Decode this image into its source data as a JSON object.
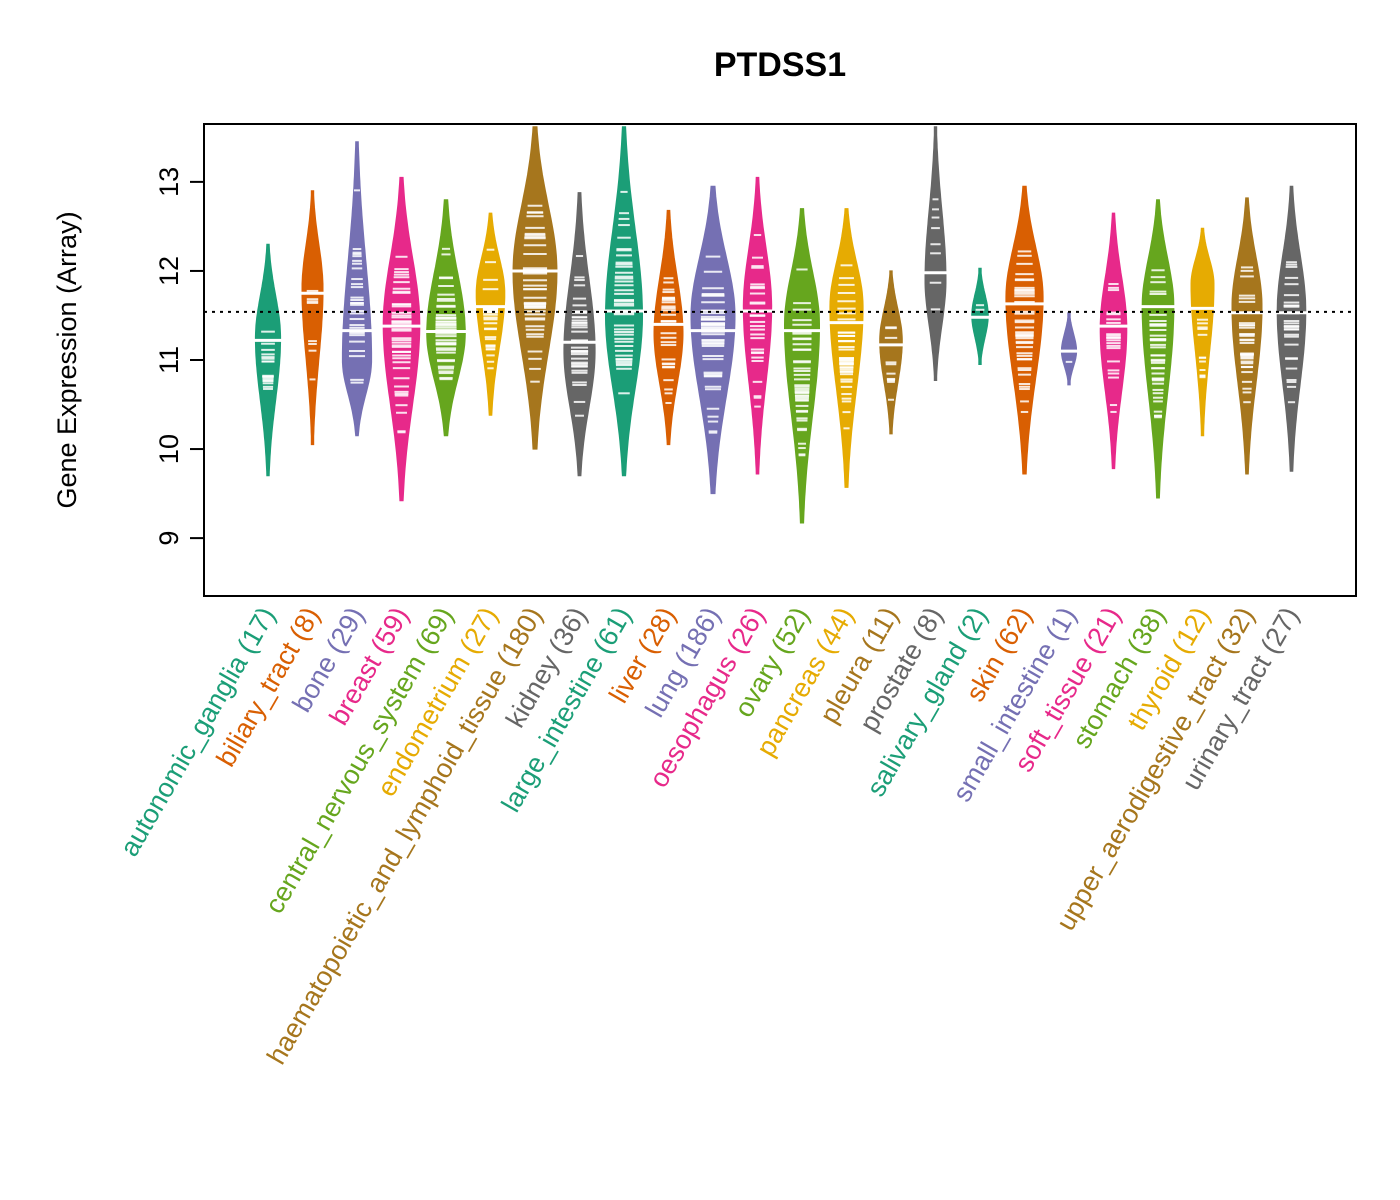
{
  "chart_data": {
    "type": "violin",
    "title": "PTDSS1",
    "xlabel": "",
    "ylabel": "Gene Expression (Array)",
    "ylim": [
      8.35,
      13.65
    ],
    "yticks": [
      9,
      10,
      11,
      12,
      13
    ],
    "reference_line": {
      "value": 11.54,
      "style": "dotted"
    },
    "grid": false,
    "legend": "none",
    "categories": [
      {
        "name": "autonomic_ganglia",
        "n": 17,
        "color": "#1B9E77",
        "min": 9.7,
        "max": 12.3,
        "median": 11.22,
        "peak": 11.25
      },
      {
        "name": "biliary_tract",
        "n": 8,
        "color": "#D95F02",
        "min": 10.05,
        "max": 12.9,
        "median": 11.75,
        "peak": 11.8
      },
      {
        "name": "bone",
        "n": 29,
        "color": "#7570B3",
        "min": 10.15,
        "max": 13.45,
        "median": 11.33,
        "peak": 11.0
      },
      {
        "name": "breast",
        "n": 59,
        "color": "#E7298A",
        "min": 9.42,
        "max": 13.05,
        "median": 11.38,
        "peak": 11.4
      },
      {
        "name": "central_nervous_system",
        "n": 69,
        "color": "#66A61E",
        "min": 10.15,
        "max": 12.8,
        "median": 11.32,
        "peak": 11.3
      },
      {
        "name": "endometrium",
        "n": 27,
        "color": "#E6AB02",
        "min": 10.38,
        "max": 12.65,
        "median": 11.6,
        "peak": 11.75
      },
      {
        "name": "haematopoietic_and_lymphoid_tissue",
        "n": 180,
        "color": "#A6761D",
        "min": 10.0,
        "max": 13.62,
        "median": 12.0,
        "peak": 12.0
      },
      {
        "name": "kidney",
        "n": 36,
        "color": "#666666",
        "min": 9.7,
        "max": 12.88,
        "median": 11.2,
        "peak": 11.1
      },
      {
        "name": "large_intestine",
        "n": 61,
        "color": "#1B9E77",
        "min": 9.7,
        "max": 13.62,
        "median": 11.55,
        "peak": 11.5
      },
      {
        "name": "liver",
        "n": 28,
        "color": "#D95F02",
        "min": 10.05,
        "max": 12.68,
        "median": 11.4,
        "peak": 11.3
      },
      {
        "name": "lung",
        "n": 186,
        "color": "#7570B3",
        "min": 9.5,
        "max": 12.95,
        "median": 11.33,
        "peak": 11.5
      },
      {
        "name": "oesophagus",
        "n": 26,
        "color": "#E7298A",
        "min": 9.72,
        "max": 13.05,
        "median": 11.55,
        "peak": 11.6
      },
      {
        "name": "ovary",
        "n": 52,
        "color": "#66A61E",
        "min": 9.17,
        "max": 12.7,
        "median": 11.33,
        "peak": 11.4
      },
      {
        "name": "pancreas",
        "n": 44,
        "color": "#E6AB02",
        "min": 9.57,
        "max": 12.7,
        "median": 11.42,
        "peak": 11.6
      },
      {
        "name": "pleura",
        "n": 11,
        "color": "#A6761D",
        "min": 10.17,
        "max": 12.0,
        "median": 11.17,
        "peak": 11.22
      },
      {
        "name": "prostate",
        "n": 8,
        "color": "#666666",
        "min": 10.77,
        "max": 13.62,
        "median": 11.98,
        "peak": 11.9
      },
      {
        "name": "salivary_gland",
        "n": 2,
        "color": "#1B9E77",
        "min": 10.95,
        "max": 12.03,
        "median": 11.48,
        "peak": 11.5
      },
      {
        "name": "skin",
        "n": 62,
        "color": "#D95F02",
        "min": 9.72,
        "max": 12.95,
        "median": 11.63,
        "peak": 11.7
      },
      {
        "name": "small_intestine",
        "n": 1,
        "color": "#7570B3",
        "min": 10.72,
        "max": 11.53,
        "median": 11.1,
        "peak": 11.1
      },
      {
        "name": "soft_tissue",
        "n": 21,
        "color": "#E7298A",
        "min": 9.78,
        "max": 12.65,
        "median": 11.38,
        "peak": 11.35
      },
      {
        "name": "stomach",
        "n": 38,
        "color": "#66A61E",
        "min": 9.45,
        "max": 12.8,
        "median": 11.6,
        "peak": 11.6
      },
      {
        "name": "thyroid",
        "n": 12,
        "color": "#E6AB02",
        "min": 10.15,
        "max": 12.48,
        "median": 11.58,
        "peak": 11.85
      },
      {
        "name": "upper_aerodigestive_tract",
        "n": 32,
        "color": "#A6761D",
        "min": 9.72,
        "max": 12.82,
        "median": 11.53,
        "peak": 11.6
      },
      {
        "name": "urinary_tract",
        "n": 27,
        "color": "#666666",
        "min": 9.75,
        "max": 12.95,
        "median": 11.53,
        "peak": 11.55
      }
    ]
  }
}
